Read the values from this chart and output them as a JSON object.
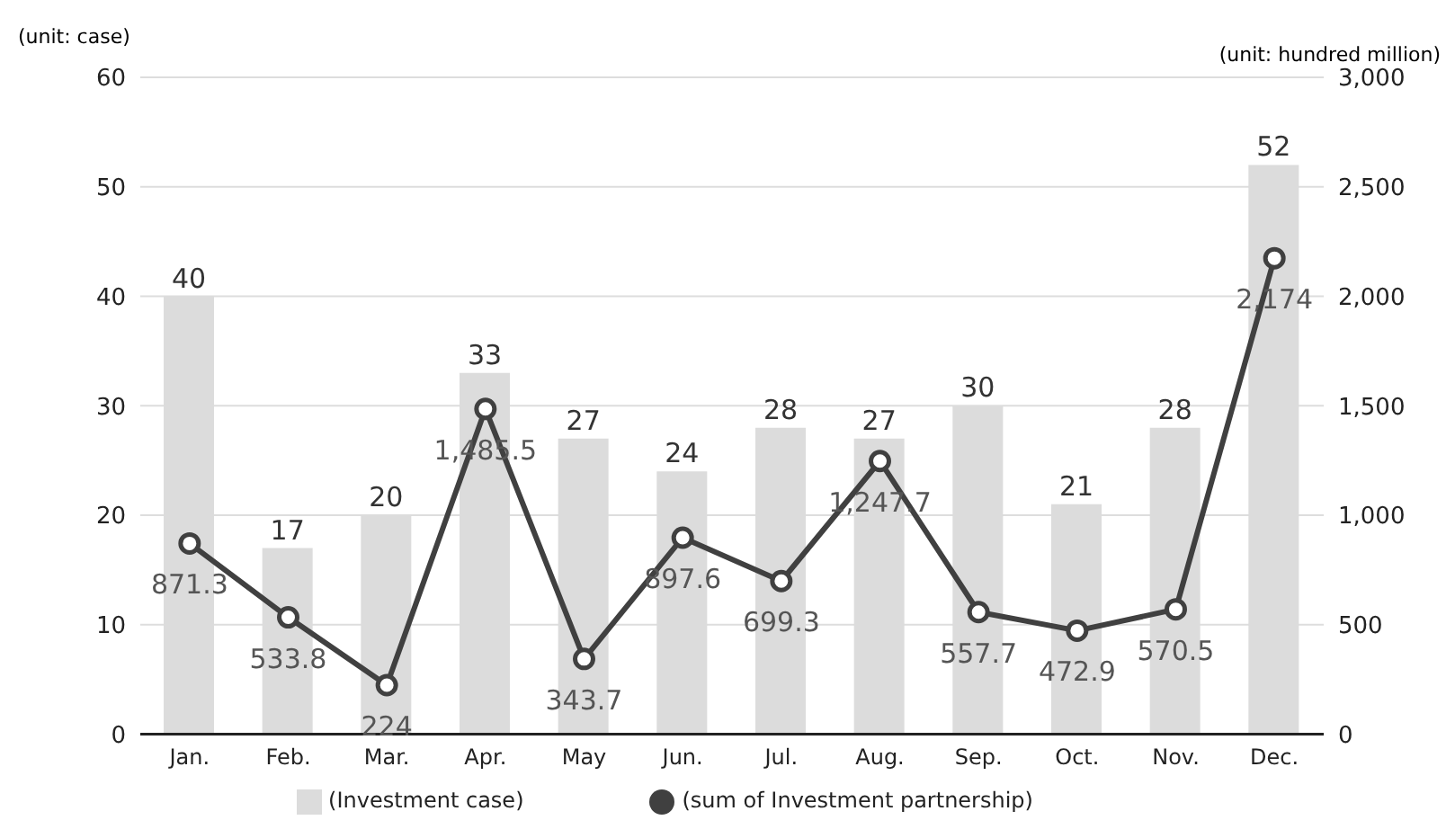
{
  "chart_data": {
    "type": "bar",
    "ylabel": "(unit: case)",
    "y2label": "(unit: hundred million)",
    "categories": [
      "Jan.",
      "Feb.",
      "Mar.",
      "Apr.",
      "May",
      "Jun.",
      "Jul.",
      "Aug.",
      "Sep.",
      "Oct.",
      "Nov.",
      "Dec."
    ],
    "series": [
      {
        "name": "(Investment case)",
        "color": "#dcdcdc",
        "values": [
          40,
          17,
          20,
          33,
          27,
          24,
          28,
          27,
          30,
          21,
          28,
          52
        ]
      },
      {
        "name": "(sum of Investment partnership)",
        "type": "line",
        "axis": "y2",
        "color": "#404040",
        "marker": "circle",
        "values": [
          871.3,
          533.8,
          224,
          1485.5,
          343.7,
          897.6,
          699.3,
          1247.7,
          557.7,
          472.9,
          570.5,
          2174
        ],
        "value_labels": [
          "871.3",
          "533.8",
          "224",
          "1,485.5",
          "343.7",
          "897.6",
          "699.3",
          "1,247.7",
          "557.7",
          "472.9",
          "570.5",
          "2,174"
        ]
      }
    ],
    "ylim": [
      0,
      60
    ],
    "yticks": [
      0,
      10,
      20,
      30,
      40,
      50,
      60
    ],
    "y2lim": [
      0,
      3000
    ],
    "y2ticks": [
      0,
      500,
      {
        "value": 1000,
        "label": "1,000"
      },
      {
        "value": 1500,
        "label": "1,500"
      },
      {
        "value": 2000,
        "label": "2,000"
      },
      {
        "value": 2500,
        "label": "2,500"
      },
      {
        "value": 3000,
        "label": "3,000"
      }
    ],
    "grid": "y",
    "legend": "bottom",
    "data_labels": true
  }
}
